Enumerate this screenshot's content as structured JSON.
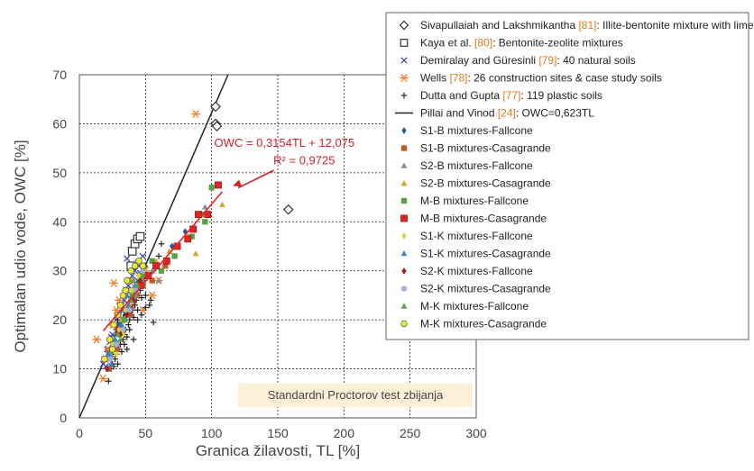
{
  "chart_data": {
    "type": "scatter",
    "xlabel": "Granica žilavosti, TL [%]",
    "ylabel": "Optimalan udio vode, OWC [%]",
    "xlim": [
      0,
      300
    ],
    "ylim": [
      0,
      70
    ],
    "x_ticks": [
      "0",
      "50",
      "100",
      "150",
      "200",
      "250",
      "300"
    ],
    "y_ticks": [
      "0",
      "10",
      "20",
      "30",
      "40",
      "50",
      "60",
      "70"
    ],
    "grid": true,
    "legend_position": "top-right",
    "annotation": {
      "equation": "OWC = 0,3154TL + 12,075",
      "r2": "R² = 0,9725"
    },
    "box_label": "Standardni Proctorov test zbijanja",
    "legend": [
      {
        "id": "siva",
        "text": "Sivapullaiah and Lakshmikantha ",
        "ref": "[81]",
        "rest": ": Illite-bentonite mixture with lime",
        "marker": "diamond-open",
        "color": "#333333"
      },
      {
        "id": "kaya",
        "text": "Kaya et al. ",
        "ref": "[80]",
        "rest": ": Bentonite-zeolite mixtures",
        "marker": "square-open",
        "color": "#333333"
      },
      {
        "id": "demir",
        "text": "Demiralay and Güresinli ",
        "ref": "[79]",
        "rest": ": 40 natural soils",
        "marker": "x",
        "color": "#3a4aa8"
      },
      {
        "id": "wells",
        "text": "Wells ",
        "ref": "[78]",
        "rest": ": 26 construction sites & case study soils",
        "marker": "asterisk",
        "color": "#f07c2a"
      },
      {
        "id": "dutta",
        "text": "Dutta and Gupta ",
        "ref": "[77]",
        "rest": ": 119 plastic soils",
        "marker": "plus",
        "color": "#222222"
      },
      {
        "id": "pillai",
        "text": "Pillai and Vinod ",
        "ref": "[24]",
        "rest": ": OWC=0,623TL",
        "marker": "line",
        "color": "#222222"
      },
      {
        "id": "s1bf",
        "text": "S1-B mixtures-Fallcone",
        "ref": "",
        "rest": "",
        "marker": "diamond",
        "color": "#2f5597"
      },
      {
        "id": "s1bc",
        "text": "S1-B mixtures-Casagrande",
        "ref": "",
        "rest": "",
        "marker": "square",
        "color": "#c55a28"
      },
      {
        "id": "s2bf",
        "text": "S2-B mixtures-Fallcone",
        "ref": "",
        "rest": "",
        "marker": "triangle",
        "color": "#8c8c8c"
      },
      {
        "id": "s2bc",
        "text": "S2-B mixtures-Casagrande",
        "ref": "",
        "rest": "",
        "marker": "triangle",
        "color": "#d9a32e"
      },
      {
        "id": "mbf",
        "text": "M-B mixtures-Fallcone",
        "ref": "",
        "rest": "",
        "marker": "square",
        "color": "#5aa046"
      },
      {
        "id": "mbc",
        "text": "M-B mixtures-Casagrande",
        "ref": "",
        "rest": "",
        "marker": "square-red",
        "color": "#e02424"
      },
      {
        "id": "s1kf",
        "text": "S1-K mixtures-Fallcone",
        "ref": "",
        "rest": "",
        "marker": "diamond",
        "color": "#d8d829"
      },
      {
        "id": "s1kc",
        "text": "S1-K mixtures-Casagrande",
        "ref": "",
        "rest": "",
        "marker": "triangle",
        "color": "#3f86c9"
      },
      {
        "id": "s2kf",
        "text": "S2-K mixtures-Fallcone",
        "ref": "",
        "rest": "",
        "marker": "diamond",
        "color": "#9a2320"
      },
      {
        "id": "s2kc",
        "text": "S2-K mixtures-Casagrande",
        "ref": "",
        "rest": "",
        "marker": "circle",
        "color": "#9db3dc"
      },
      {
        "id": "mkf",
        "text": "M-K mixtures-Fallcone",
        "ref": "",
        "rest": "",
        "marker": "triangle",
        "color": "#5aa046"
      },
      {
        "id": "mkc",
        "text": "M-K mixtures-Casagrande",
        "ref": "",
        "rest": "",
        "marker": "circle-y",
        "color": "#eaea33"
      }
    ],
    "series": [
      {
        "id": "siva",
        "points": [
          [
            103,
            63.5
          ],
          [
            103,
            60
          ],
          [
            104,
            59.5
          ],
          [
            158,
            42.5
          ]
        ]
      },
      {
        "id": "kaya",
        "points": [
          [
            40,
            34
          ],
          [
            42,
            35.5
          ],
          [
            44,
            36.5
          ],
          [
            46,
            37
          ],
          [
            39,
            31
          ]
        ]
      },
      {
        "id": "demir",
        "points": [
          [
            19,
            12
          ],
          [
            21,
            14
          ],
          [
            23,
            15.5
          ],
          [
            25,
            17
          ],
          [
            27,
            19
          ],
          [
            30,
            21
          ],
          [
            32,
            23
          ],
          [
            34,
            24
          ],
          [
            36,
            26
          ],
          [
            38,
            28
          ],
          [
            40,
            29
          ],
          [
            42,
            30
          ],
          [
            45,
            31
          ],
          [
            36,
            32.5
          ],
          [
            28,
            20
          ],
          [
            24,
            16.5
          ],
          [
            33,
            22
          ],
          [
            31,
            18.5
          ],
          [
            29,
            17.5
          ],
          [
            26,
            14
          ],
          [
            22,
            13
          ],
          [
            35,
            21
          ],
          [
            37,
            27
          ],
          [
            39,
            24
          ],
          [
            41,
            25
          ],
          [
            20,
            10.5
          ],
          [
            18,
            11
          ],
          [
            44,
            28
          ],
          [
            46,
            29.5
          ],
          [
            48,
            33
          ]
        ]
      },
      {
        "id": "wells",
        "points": [
          [
            13,
            16
          ],
          [
            18,
            8
          ],
          [
            20,
            12
          ],
          [
            22,
            14
          ],
          [
            25,
            19
          ],
          [
            28,
            22
          ],
          [
            30,
            24
          ],
          [
            32,
            20
          ],
          [
            35,
            26
          ],
          [
            38,
            28
          ],
          [
            40,
            23
          ],
          [
            43,
            27
          ],
          [
            46,
            29
          ],
          [
            50,
            30
          ],
          [
            55,
            25
          ],
          [
            60,
            28
          ],
          [
            26,
            27.5
          ],
          [
            88,
            62
          ],
          [
            48,
            22
          ]
        ]
      },
      {
        "id": "dutta",
        "points": [
          [
            22,
            7.5
          ],
          [
            24,
            10
          ],
          [
            25,
            11
          ],
          [
            26,
            10.5
          ],
          [
            27,
            12
          ],
          [
            28,
            13
          ],
          [
            29,
            11
          ],
          [
            30,
            14
          ],
          [
            31,
            15
          ],
          [
            32,
            13.5
          ],
          [
            33,
            16
          ],
          [
            34,
            17
          ],
          [
            35,
            18
          ],
          [
            36,
            16.5
          ],
          [
            37,
            19
          ],
          [
            38,
            20
          ],
          [
            39,
            21
          ],
          [
            40,
            22
          ],
          [
            41,
            20.5
          ],
          [
            42,
            23
          ],
          [
            43,
            24
          ],
          [
            44,
            22
          ],
          [
            45,
            25
          ],
          [
            46,
            26
          ],
          [
            47,
            24.5
          ],
          [
            48,
            27
          ],
          [
            49,
            28
          ],
          [
            50,
            25
          ],
          [
            52,
            29
          ],
          [
            54,
            24
          ],
          [
            56,
            19.5
          ],
          [
            58,
            31
          ],
          [
            60,
            33
          ],
          [
            62,
            35.5
          ],
          [
            30,
            17
          ],
          [
            32,
            18
          ],
          [
            34,
            15
          ],
          [
            36,
            14
          ],
          [
            26,
            16
          ],
          [
            28,
            18
          ],
          [
            25,
            13
          ],
          [
            24,
            12.5
          ],
          [
            35,
            21
          ],
          [
            38,
            18
          ],
          [
            41,
            16
          ],
          [
            44,
            20
          ],
          [
            47,
            21
          ],
          [
            50,
            22.5
          ],
          [
            53,
            23
          ],
          [
            29,
            20
          ]
        ]
      },
      {
        "id": "pillai",
        "line": [
          [
            0,
            0
          ],
          [
            112.4,
            70
          ]
        ]
      },
      {
        "id": "s1bf",
        "points": [
          [
            25,
            15
          ],
          [
            30,
            19
          ],
          [
            35,
            22
          ],
          [
            40,
            26
          ],
          [
            45,
            29
          ],
          [
            50,
            31
          ],
          [
            70,
            35
          ],
          [
            80,
            38
          ]
        ]
      },
      {
        "id": "s1bc",
        "points": [
          [
            22,
            10
          ],
          [
            28,
            14
          ],
          [
            33,
            18
          ],
          [
            38,
            21
          ],
          [
            43,
            25
          ],
          [
            48,
            27
          ],
          [
            55,
            28
          ],
          [
            65,
            31
          ]
        ]
      },
      {
        "id": "s2bf",
        "points": [
          [
            24,
            13
          ],
          [
            30,
            17
          ],
          [
            36,
            21
          ],
          [
            42,
            25
          ],
          [
            48,
            28
          ],
          [
            55,
            30
          ],
          [
            60,
            28
          ],
          [
            95,
            43
          ]
        ]
      },
      {
        "id": "s2bc",
        "points": [
          [
            26,
            16
          ],
          [
            32,
            20
          ],
          [
            38,
            24
          ],
          [
            44,
            27
          ],
          [
            50,
            30
          ],
          [
            58,
            32
          ],
          [
            68,
            34
          ],
          [
            82,
            37
          ],
          [
            88,
            33.5
          ],
          [
            108,
            43.5
          ]
        ]
      },
      {
        "id": "mbf",
        "points": [
          [
            27,
            15
          ],
          [
            34,
            20
          ],
          [
            40,
            25
          ],
          [
            47,
            29
          ],
          [
            55,
            32
          ],
          [
            62,
            30
          ],
          [
            72,
            33
          ],
          [
            85,
            37
          ],
          [
            95,
            40
          ],
          [
            100,
            47
          ],
          [
            92,
            41.5
          ]
        ]
      },
      {
        "id": "mbc",
        "points": [
          [
            30,
            18
          ],
          [
            38,
            22
          ],
          [
            46,
            27
          ],
          [
            52,
            29
          ],
          [
            58,
            31
          ],
          [
            66,
            32
          ],
          [
            74,
            35
          ],
          [
            82,
            36.5
          ],
          [
            86,
            38.5
          ],
          [
            90,
            41.5
          ],
          [
            97,
            41.5
          ],
          [
            105,
            47.5
          ]
        ]
      },
      {
        "id": "s1kf",
        "points": [
          [
            20,
            12
          ],
          [
            25,
            15
          ],
          [
            30,
            18
          ],
          [
            35,
            22
          ],
          [
            40,
            26
          ],
          [
            45,
            29
          ],
          [
            28,
            13
          ],
          [
            33,
            17
          ]
        ]
      },
      {
        "id": "s1kc",
        "points": [
          [
            22,
            13
          ],
          [
            27,
            16
          ],
          [
            32,
            19
          ],
          [
            37,
            23
          ],
          [
            42,
            27
          ],
          [
            47,
            30
          ],
          [
            24,
            11
          ],
          [
            36,
            25
          ]
        ]
      },
      {
        "id": "s2kf",
        "points": [
          [
            21,
            10
          ],
          [
            26,
            14
          ],
          [
            31,
            17
          ],
          [
            36,
            21
          ],
          [
            41,
            24
          ],
          [
            46,
            28
          ],
          [
            29,
            15
          ],
          [
            39,
            22
          ]
        ]
      },
      {
        "id": "s2kc",
        "points": [
          [
            23,
            12
          ],
          [
            28,
            15
          ],
          [
            33,
            18
          ],
          [
            38,
            22
          ],
          [
            43,
            26
          ],
          [
            48,
            30
          ],
          [
            30,
            21
          ],
          [
            44,
            32
          ]
        ]
      },
      {
        "id": "mkf",
        "points": [
          [
            24,
            14
          ],
          [
            29,
            17
          ],
          [
            34,
            20
          ],
          [
            39,
            24
          ],
          [
            44,
            27
          ],
          [
            49,
            31
          ],
          [
            31,
            16
          ],
          [
            41,
            28
          ]
        ]
      },
      {
        "id": "mkc",
        "points": [
          [
            19,
            12
          ],
          [
            23,
            16
          ],
          [
            26,
            19
          ],
          [
            29,
            21
          ],
          [
            33,
            25
          ],
          [
            36,
            28
          ],
          [
            39,
            30
          ],
          [
            42,
            31
          ],
          [
            45,
            32
          ],
          [
            48,
            31
          ],
          [
            25,
            14
          ],
          [
            31,
            23
          ],
          [
            35,
            26
          ]
        ]
      }
    ]
  }
}
